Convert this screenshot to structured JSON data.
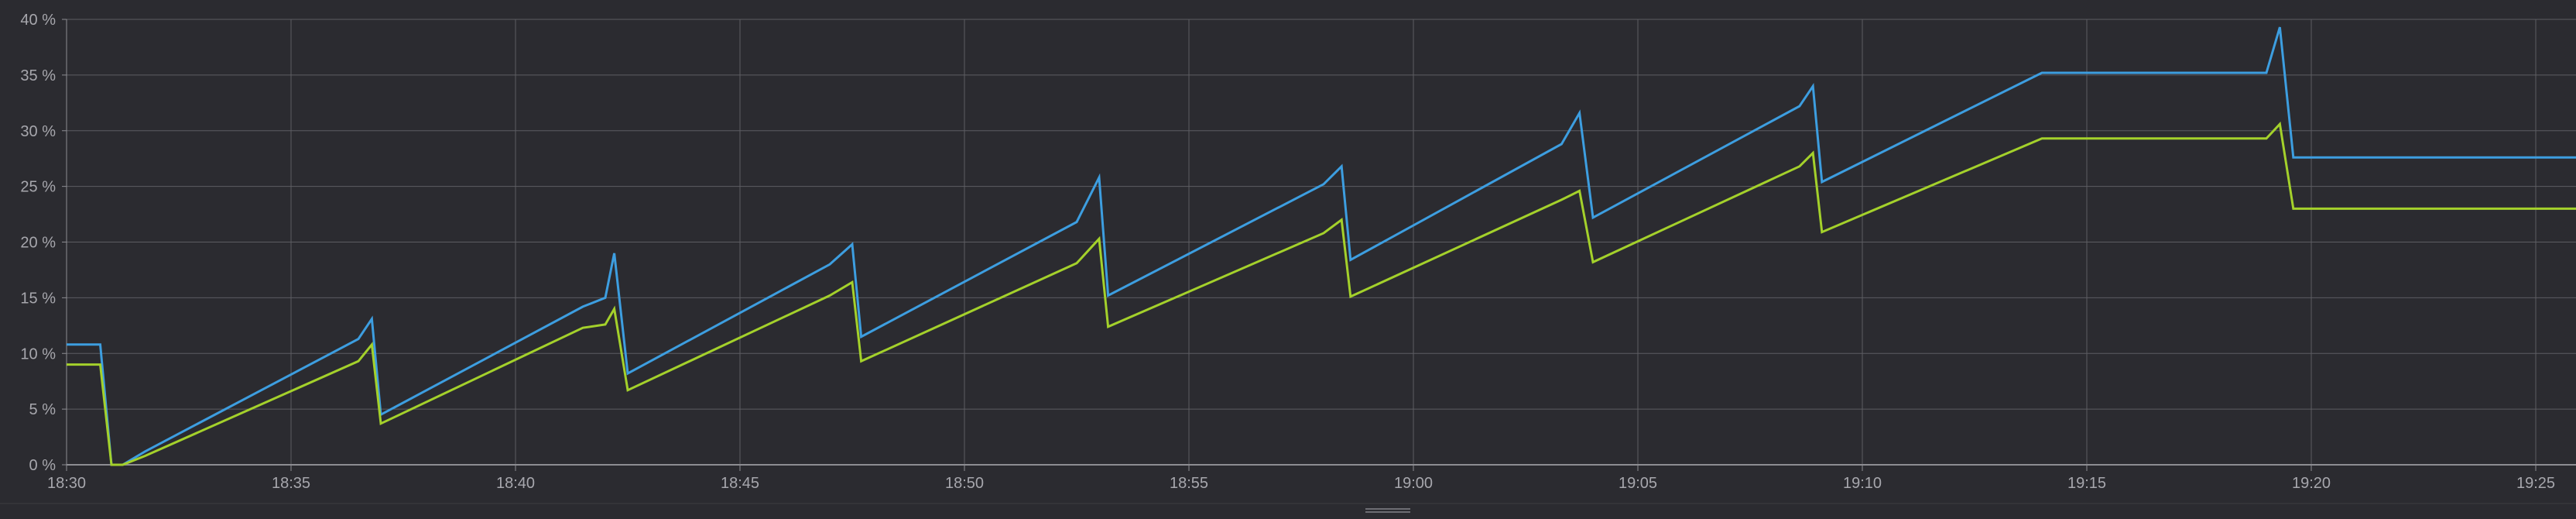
{
  "chart_data": {
    "type": "line",
    "title": "",
    "xlabel": "",
    "ylabel": "",
    "x_unit": "time (HH:MM)",
    "xlim": [
      "18:30",
      "19:26"
    ],
    "ylim": [
      0,
      40
    ],
    "grid": true,
    "legend": "none",
    "x_tick_labels": [
      "18:30",
      "18:35",
      "18:40",
      "18:45",
      "18:50",
      "18:55",
      "19:00",
      "19:05",
      "19:10",
      "19:15",
      "19:20",
      "19:25"
    ],
    "y_tick_labels": [
      "0 %",
      "5 %",
      "10 %",
      "15 %",
      "20 %",
      "25 %",
      "30 %",
      "35 %",
      "40 %"
    ],
    "series": [
      {
        "color": "#3d9ee0",
        "points": [
          [
            "18:30:00",
            10.8
          ],
          [
            "18:30:45",
            10.8
          ],
          [
            "18:31:00",
            0
          ],
          [
            "18:31:15",
            0
          ],
          [
            "18:31:45",
            1.2
          ],
          [
            "18:36:30",
            11.3
          ],
          [
            "18:36:48",
            13.1
          ],
          [
            "18:37:00",
            4.5
          ],
          [
            "18:41:30",
            14.2
          ],
          [
            "18:42:00",
            15.0
          ],
          [
            "18:42:12",
            19.0
          ],
          [
            "18:42:30",
            8.2
          ],
          [
            "18:47:00",
            18.0
          ],
          [
            "18:47:30",
            19.8
          ],
          [
            "18:47:42",
            11.5
          ],
          [
            "18:52:30",
            21.8
          ],
          [
            "18:53:00",
            25.8
          ],
          [
            "18:53:12",
            15.2
          ],
          [
            "18:58:00",
            25.2
          ],
          [
            "18:58:24",
            26.8
          ],
          [
            "18:58:36",
            18.4
          ],
          [
            "19:03:18",
            28.8
          ],
          [
            "19:03:42",
            31.6
          ],
          [
            "19:04:00",
            22.2
          ],
          [
            "19:08:36",
            32.2
          ],
          [
            "19:08:54",
            34.0
          ],
          [
            "19:09:06",
            25.4
          ],
          [
            "19:14:00",
            35.2
          ],
          [
            "19:19:00",
            35.2
          ],
          [
            "19:19:18",
            39.3
          ],
          [
            "19:19:36",
            27.6
          ],
          [
            "19:26:00",
            27.6
          ]
        ]
      },
      {
        "color": "#a4d12b",
        "points": [
          [
            "18:30:00",
            9.0
          ],
          [
            "18:30:45",
            9.0
          ],
          [
            "18:31:00",
            0
          ],
          [
            "18:31:15",
            0
          ],
          [
            "18:31:45",
            0.8
          ],
          [
            "18:36:30",
            9.3
          ],
          [
            "18:36:48",
            10.8
          ],
          [
            "18:37:00",
            3.7
          ],
          [
            "18:41:30",
            12.3
          ],
          [
            "18:42:00",
            12.6
          ],
          [
            "18:42:12",
            14.0
          ],
          [
            "18:42:30",
            6.7
          ],
          [
            "18:47:00",
            15.2
          ],
          [
            "18:47:30",
            16.4
          ],
          [
            "18:47:42",
            9.3
          ],
          [
            "18:52:30",
            18.1
          ],
          [
            "18:53:00",
            20.3
          ],
          [
            "18:53:12",
            12.4
          ],
          [
            "18:58:00",
            20.8
          ],
          [
            "18:58:24",
            22.0
          ],
          [
            "18:58:36",
            15.1
          ],
          [
            "19:03:18",
            23.8
          ],
          [
            "19:03:42",
            24.6
          ],
          [
            "19:04:00",
            18.2
          ],
          [
            "19:08:36",
            26.8
          ],
          [
            "19:08:54",
            28.0
          ],
          [
            "19:09:06",
            20.9
          ],
          [
            "19:14:00",
            29.3
          ],
          [
            "19:19:00",
            29.3
          ],
          [
            "19:19:18",
            30.6
          ],
          [
            "19:19:36",
            23.0
          ],
          [
            "19:26:00",
            23.0
          ]
        ]
      }
    ]
  },
  "colors": {
    "background": "#2b2b30",
    "grid": "#5d5d62",
    "axis": "#8d8d92",
    "tick_text": "#a7a7ad"
  },
  "ui": {
    "resize_handle_icon": "grip-lines-icon"
  }
}
